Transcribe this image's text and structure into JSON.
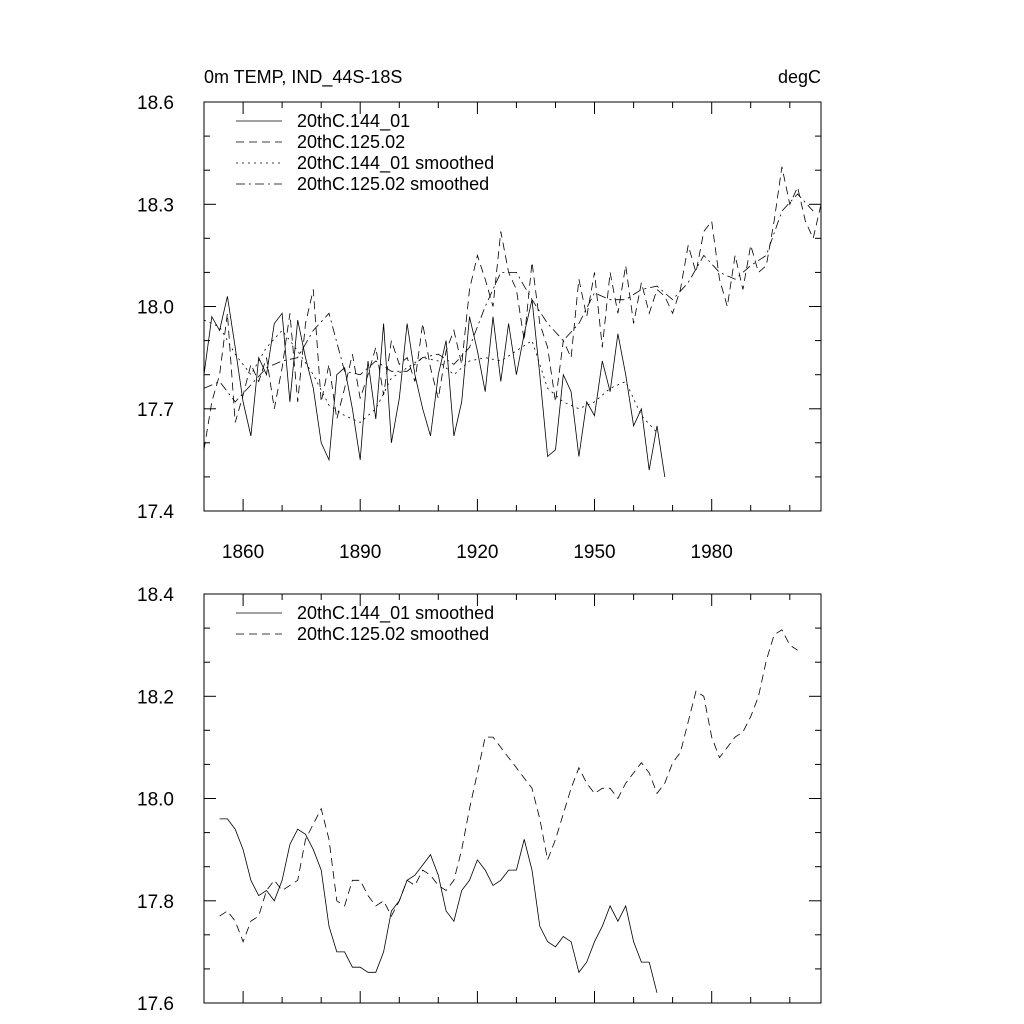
{
  "chart_data": [
    {
      "type": "line",
      "title": "0m TEMP, IND_44S-18S",
      "units": "degC",
      "xlim": [
        1850,
        2008
      ],
      "ylim": [
        17.4,
        18.6
      ],
      "xticks": [
        1860,
        1890,
        1920,
        1950,
        1980
      ],
      "yticks": [
        17.4,
        17.7,
        18.0,
        18.3,
        18.6
      ],
      "ytick_labels": [
        "17.4",
        "17.7",
        "18.0",
        "18.3",
        "18.6"
      ],
      "legend_position": "top-left",
      "series": [
        {
          "name": "20thC.144_01",
          "style": "solid",
          "x": [
            1850,
            1852,
            1854,
            1856,
            1858,
            1860,
            1862,
            1864,
            1866,
            1868,
            1870,
            1872,
            1874,
            1876,
            1878,
            1880,
            1882,
            1884,
            1886,
            1888,
            1890,
            1892,
            1894,
            1896,
            1898,
            1900,
            1902,
            1904,
            1906,
            1908,
            1910,
            1912,
            1914,
            1916,
            1918,
            1920,
            1922,
            1924,
            1926,
            1928,
            1930,
            1932,
            1934,
            1936,
            1938,
            1940,
            1942,
            1944,
            1946,
            1948,
            1950,
            1952,
            1954,
            1956,
            1958,
            1960,
            1962,
            1964,
            1966,
            1968
          ],
          "values": [
            17.8,
            17.97,
            17.93,
            18.03,
            17.88,
            17.72,
            17.62,
            17.85,
            17.8,
            17.95,
            17.98,
            17.72,
            17.96,
            17.85,
            17.76,
            17.6,
            17.55,
            17.8,
            17.82,
            17.7,
            17.55,
            17.84,
            17.67,
            17.95,
            17.6,
            17.73,
            17.95,
            17.8,
            17.7,
            17.62,
            17.8,
            17.9,
            17.62,
            17.72,
            17.97,
            17.87,
            17.75,
            17.97,
            17.78,
            17.95,
            17.8,
            17.92,
            18.02,
            17.8,
            17.56,
            17.58,
            17.8,
            17.75,
            17.56,
            17.72,
            17.68,
            17.84,
            17.75,
            17.92,
            17.8,
            17.65,
            17.7,
            17.52,
            17.65,
            17.5
          ]
        },
        {
          "name": "20thC.125.02",
          "style": "dashed",
          "x": [
            1850,
            1852,
            1854,
            1856,
            1858,
            1860,
            1862,
            1864,
            1866,
            1868,
            1870,
            1872,
            1874,
            1876,
            1878,
            1880,
            1882,
            1884,
            1886,
            1888,
            1890,
            1892,
            1894,
            1896,
            1898,
            1900,
            1902,
            1904,
            1906,
            1908,
            1910,
            1912,
            1914,
            1916,
            1918,
            1920,
            1922,
            1924,
            1926,
            1928,
            1930,
            1932,
            1934,
            1936,
            1938,
            1940,
            1942,
            1944,
            1946,
            1948,
            1950,
            1952,
            1954,
            1956,
            1958,
            1960,
            1962,
            1964,
            1966,
            1968,
            1970,
            1972,
            1974,
            1976,
            1978,
            1980,
            1982,
            1984,
            1986,
            1988,
            1990,
            1992,
            1994,
            1996,
            1998,
            2000,
            2002,
            2004,
            2006,
            2008
          ],
          "values": [
            17.58,
            17.72,
            17.8,
            17.98,
            17.66,
            17.74,
            17.83,
            17.78,
            17.85,
            17.7,
            17.82,
            17.98,
            17.72,
            17.95,
            18.05,
            17.72,
            17.83,
            17.67,
            17.76,
            17.86,
            17.73,
            17.8,
            17.88,
            17.74,
            17.9,
            17.83,
            17.85,
            17.78,
            17.95,
            17.82,
            17.73,
            17.87,
            17.93,
            17.83,
            18.05,
            18.15,
            18.08,
            18.0,
            18.22,
            18.1,
            18.05,
            17.9,
            18.13,
            17.95,
            17.88,
            17.72,
            17.9,
            17.85,
            18.08,
            17.97,
            18.1,
            17.88,
            18.1,
            17.98,
            18.12,
            17.95,
            18.07,
            17.98,
            18.05,
            18.03,
            17.98,
            18.05,
            18.18,
            18.1,
            18.22,
            18.25,
            18.08,
            18.0,
            18.15,
            18.05,
            18.18,
            18.1,
            18.12,
            18.25,
            18.41,
            18.3,
            18.35,
            18.25,
            18.2,
            18.3
          ]
        },
        {
          "name": "20thC.144_01 smoothed",
          "style": "dotted",
          "x": [
            1850,
            1854,
            1858,
            1862,
            1866,
            1870,
            1874,
            1878,
            1882,
            1886,
            1890,
            1894,
            1898,
            1902,
            1906,
            1910,
            1914,
            1918,
            1922,
            1926,
            1930,
            1934,
            1938,
            1942,
            1946,
            1950,
            1954,
            1958,
            1962,
            1966
          ],
          "values": [
            17.96,
            17.94,
            17.86,
            17.8,
            17.88,
            17.93,
            17.87,
            17.8,
            17.71,
            17.68,
            17.66,
            17.7,
            17.79,
            17.82,
            17.85,
            17.84,
            17.8,
            17.84,
            17.85,
            17.84,
            17.87,
            17.9,
            17.76,
            17.72,
            17.7,
            17.72,
            17.76,
            17.78,
            17.68,
            17.63
          ]
        },
        {
          "name": "20thC.125.02 smoothed",
          "style": "dashdot",
          "x": [
            1850,
            1854,
            1858,
            1862,
            1866,
            1870,
            1874,
            1878,
            1882,
            1886,
            1890,
            1894,
            1898,
            1902,
            1906,
            1910,
            1914,
            1918,
            1922,
            1926,
            1930,
            1934,
            1938,
            1942,
            1946,
            1950,
            1954,
            1958,
            1962,
            1966,
            1970,
            1974,
            1978,
            1982,
            1986,
            1990,
            1994,
            1998,
            2002,
            2006
          ],
          "values": [
            17.76,
            17.78,
            17.72,
            17.77,
            17.82,
            17.84,
            17.85,
            17.93,
            17.98,
            17.81,
            17.8,
            17.84,
            17.81,
            17.81,
            17.85,
            17.86,
            17.83,
            17.88,
            18.0,
            18.1,
            18.1,
            18.02,
            17.95,
            17.9,
            17.95,
            18.04,
            18.02,
            18.02,
            18.05,
            18.06,
            18.02,
            18.07,
            18.15,
            18.1,
            18.08,
            18.12,
            18.15,
            18.28,
            18.33,
            18.28
          ]
        }
      ]
    },
    {
      "type": "line",
      "title": "",
      "xlim": [
        1850,
        2008
      ],
      "ylim": [
        17.6,
        18.4
      ],
      "yticks": [
        17.6,
        17.8,
        18.0,
        18.2,
        18.4
      ],
      "ytick_labels": [
        "17.6",
        "17.8",
        "18.0",
        "18.2",
        "18.4"
      ],
      "legend_position": "top-left",
      "series": [
        {
          "name": "20thC.144_01 smoothed",
          "style": "solid",
          "x": [
            1854,
            1856,
            1858,
            1860,
            1862,
            1864,
            1866,
            1868,
            1870,
            1872,
            1874,
            1876,
            1878,
            1880,
            1882,
            1884,
            1886,
            1888,
            1890,
            1892,
            1894,
            1896,
            1898,
            1900,
            1902,
            1904,
            1906,
            1908,
            1910,
            1912,
            1914,
            1916,
            1918,
            1920,
            1922,
            1924,
            1926,
            1928,
            1930,
            1932,
            1934,
            1936,
            1938,
            1940,
            1942,
            1944,
            1946,
            1948,
            1950,
            1952,
            1954,
            1956,
            1958,
            1960,
            1962,
            1964,
            1966
          ],
          "values": [
            17.96,
            17.96,
            17.94,
            17.9,
            17.84,
            17.81,
            17.82,
            17.8,
            17.84,
            17.91,
            17.94,
            17.93,
            17.9,
            17.86,
            17.75,
            17.7,
            17.7,
            17.67,
            17.67,
            17.66,
            17.66,
            17.7,
            17.78,
            17.8,
            17.84,
            17.85,
            17.87,
            17.89,
            17.85,
            17.78,
            17.76,
            17.82,
            17.84,
            17.88,
            17.86,
            17.83,
            17.84,
            17.86,
            17.86,
            17.92,
            17.86,
            17.75,
            17.72,
            17.71,
            17.73,
            17.72,
            17.66,
            17.68,
            17.72,
            17.75,
            17.79,
            17.76,
            17.79,
            17.72,
            17.68,
            17.68,
            17.62
          ]
        },
        {
          "name": "20thC.125.02 smoothed",
          "style": "dashed",
          "x": [
            1854,
            1856,
            1858,
            1860,
            1862,
            1864,
            1866,
            1868,
            1870,
            1872,
            1874,
            1876,
            1878,
            1880,
            1882,
            1884,
            1886,
            1888,
            1890,
            1892,
            1894,
            1896,
            1898,
            1900,
            1902,
            1904,
            1906,
            1908,
            1910,
            1912,
            1914,
            1916,
            1918,
            1920,
            1922,
            1924,
            1926,
            1928,
            1930,
            1932,
            1934,
            1936,
            1938,
            1940,
            1942,
            1944,
            1946,
            1948,
            1950,
            1952,
            1954,
            1956,
            1958,
            1960,
            1962,
            1964,
            1966,
            1968,
            1970,
            1972,
            1974,
            1976,
            1978,
            1980,
            1982,
            1984,
            1986,
            1988,
            1990,
            1992,
            1994,
            1996,
            1998,
            2000,
            2002
          ],
          "values": [
            17.77,
            17.78,
            17.76,
            17.72,
            17.76,
            17.77,
            17.82,
            17.84,
            17.82,
            17.83,
            17.84,
            17.92,
            17.95,
            17.98,
            17.92,
            17.8,
            17.79,
            17.84,
            17.84,
            17.81,
            17.79,
            17.8,
            17.77,
            17.8,
            17.84,
            17.83,
            17.86,
            17.85,
            17.83,
            17.82,
            17.84,
            17.9,
            17.98,
            18.05,
            18.12,
            18.12,
            18.1,
            18.08,
            18.06,
            18.04,
            18.02,
            17.96,
            17.88,
            17.92,
            17.97,
            18.02,
            18.06,
            18.03,
            18.01,
            18.02,
            18.02,
            18.0,
            18.03,
            18.05,
            18.07,
            18.05,
            18.01,
            18.03,
            18.07,
            18.09,
            18.15,
            18.21,
            18.2,
            18.12,
            18.08,
            18.1,
            18.12,
            18.13,
            18.16,
            18.2,
            18.27,
            18.32,
            18.33,
            18.3,
            18.29
          ]
        }
      ]
    }
  ]
}
